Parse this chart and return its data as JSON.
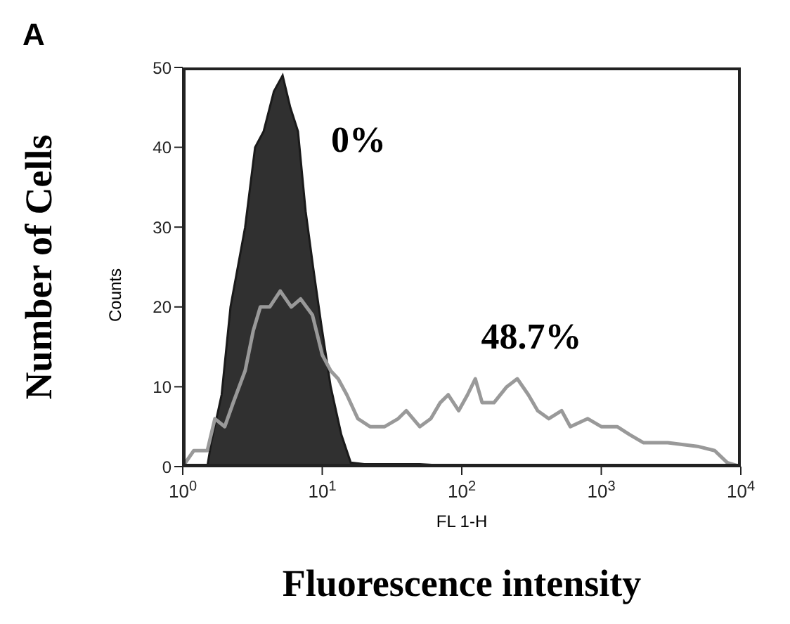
{
  "chart_data": {
    "type": "area",
    "title": "A",
    "xlabel": "Fluorescence intensity",
    "ylabel": "Number of Cells",
    "annotations": [
      "Counts",
      "FL 1-H",
      "0%",
      "48.7%"
    ],
    "log": "x",
    "xlim": [
      1,
      10000
    ],
    "ylim": [
      0,
      50
    ],
    "xticks": [
      {
        "value": 1,
        "label": "10$^{0}$"
      },
      {
        "value": 10,
        "label": "10$^{1}$"
      },
      {
        "value": 100,
        "label": "10$^{2}$"
      },
      {
        "value": 1000,
        "label": "10$^{3}$"
      },
      {
        "value": 10000,
        "label": "10$^{4}$"
      }
    ],
    "yticks": [
      0,
      10,
      20,
      30,
      40,
      50
    ],
    "series": [
      {
        "color": "#1a1a1a",
        "x": [
          1.5,
          1.6,
          1.9,
          2.2,
          2.8,
          3.3,
          3.8,
          4.5,
          5.2,
          5.9,
          6.7,
          7.6,
          8.6,
          9.8,
          11.5,
          13.7,
          16,
          20,
          30,
          50,
          100
        ],
        "values": [
          0,
          3,
          9,
          20,
          30,
          40,
          42,
          47,
          49,
          45,
          42,
          32,
          25,
          18,
          10,
          4,
          0.5,
          0.3,
          0.3,
          0.3,
          0
        ]
      },
      {
        "type": "line",
        "color": "#999999",
        "x": [
          1,
          1.2,
          1.5,
          1.7,
          2,
          2.3,
          2.8,
          3.2,
          3.6,
          4.2,
          5,
          6,
          7,
          8.5,
          10,
          11.5,
          13,
          15,
          18,
          22,
          28,
          35,
          40,
          50,
          60,
          70,
          80,
          95,
          110,
          125,
          140,
          170,
          210,
          250,
          300,
          350,
          420,
          520,
          600,
          800,
          1000,
          1300,
          1600,
          2000,
          3000,
          5000,
          6500,
          8000,
          10000
        ],
        "values": [
          0,
          2,
          2,
          6,
          5,
          8,
          12,
          17,
          20,
          20,
          22,
          20,
          21,
          19,
          14,
          12,
          11,
          9,
          6,
          5,
          5,
          6,
          7,
          5,
          6,
          8,
          9,
          7,
          9,
          11,
          8,
          8,
          10,
          11,
          9,
          7,
          6,
          7,
          5,
          6,
          5,
          5,
          4,
          3,
          3,
          2.5,
          2,
          0.5,
          0
        ]
      }
    ]
  }
}
